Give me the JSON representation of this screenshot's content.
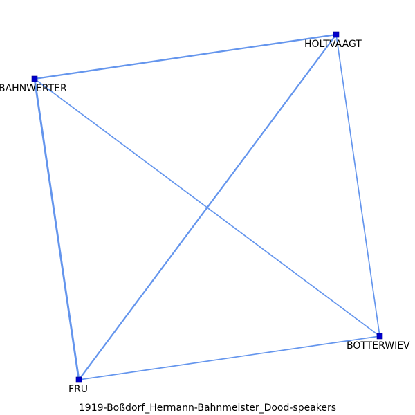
{
  "caption": "1919-Boßdorf_Hermann-Bahnmeister_Dood-speakers",
  "colors": {
    "edge": "#6495ED",
    "node": "#0000CD"
  },
  "nodes": [
    {
      "id": "holtvaagt",
      "label": "HOLTVAAGT"
    },
    {
      "id": "bahnwerter",
      "label": "BAHNWERTER"
    },
    {
      "id": "botterwiev",
      "label": "BOTTERWIEV"
    },
    {
      "id": "fru",
      "label": "FRU"
    }
  ],
  "edges": [
    {
      "source": "bahnwerter",
      "target": "holtvaagt",
      "weight": 3
    },
    {
      "source": "bahnwerter",
      "target": "fru",
      "weight": 4
    },
    {
      "source": "holtvaagt",
      "target": "fru",
      "weight": 3
    },
    {
      "source": "bahnwerter",
      "target": "botterwiev",
      "weight": 2
    },
    {
      "source": "holtvaagt",
      "target": "botterwiev",
      "weight": 2
    },
    {
      "source": "fru",
      "target": "botterwiev",
      "weight": 2
    }
  ]
}
